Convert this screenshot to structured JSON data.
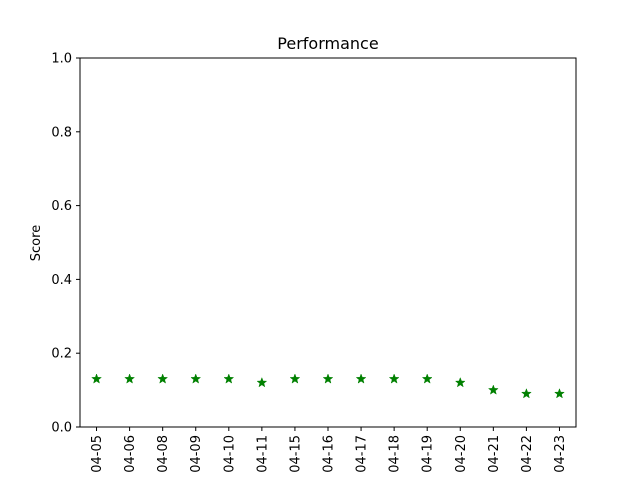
{
  "chart_data": {
    "type": "scatter",
    "title": "Performance",
    "xlabel": "",
    "ylabel": "Score",
    "x": [
      "04-05",
      "04-06",
      "04-08",
      "04-09",
      "04-10",
      "04-11",
      "04-15",
      "04-16",
      "04-17",
      "04-18",
      "04-19",
      "04-20",
      "04-21",
      "04-22",
      "04-23"
    ],
    "series": [
      {
        "values": [
          0.13,
          0.13,
          0.13,
          0.13,
          0.13,
          0.12,
          0.13,
          0.13,
          0.13,
          0.13,
          0.13,
          0.12,
          0.1,
          0.09,
          0.09
        ],
        "color": "#008000",
        "marker": "star"
      }
    ],
    "ylim": [
      0.0,
      1.0
    ],
    "yticks": [
      "0.0",
      "0.2",
      "0.4",
      "0.6",
      "0.8",
      "1.0"
    ],
    "grid": false,
    "legend": "none"
  }
}
